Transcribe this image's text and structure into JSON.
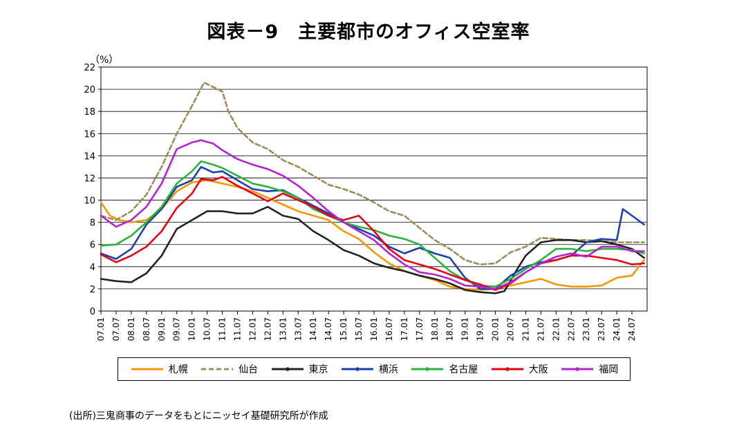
{
  "chart_data": {
    "type": "line",
    "title": "図表－9　主要都市のオフィス空室率",
    "ylabel": "（%）",
    "xlabel": "",
    "ylim": [
      0,
      22
    ],
    "yticks": [
      0,
      2,
      4,
      6,
      8,
      10,
      12,
      14,
      16,
      18,
      20,
      22
    ],
    "x_tick_labels": [
      "07.01",
      "07.07",
      "08.01",
      "08.07",
      "09.01",
      "09.07",
      "10.01",
      "10.07",
      "11.01",
      "11.07",
      "12.01",
      "12.07",
      "13.01",
      "13.07",
      "14.01",
      "14.07",
      "15.01",
      "15.07",
      "16.01",
      "16.07",
      "17.01",
      "17.07",
      "18.01",
      "18.07",
      "19.01",
      "19.07",
      "20.01",
      "20.07",
      "21.01",
      "21.07",
      "22.01",
      "22.07",
      "23.01",
      "23.07",
      "24.01",
      "24.07"
    ],
    "x_range": [
      "2007.01",
      "2024.12"
    ],
    "grid": "horizontal",
    "legend_placement": "bottom",
    "series": [
      {
        "name": "札幌",
        "color": "#F39800",
        "style": "solid",
        "points": [
          [
            2007.0,
            9.8
          ],
          [
            2007.3,
            8.6
          ],
          [
            2007.6,
            8.2
          ],
          [
            2008.0,
            8.0
          ],
          [
            2008.5,
            8.2
          ],
          [
            2009.0,
            9.2
          ],
          [
            2009.5,
            10.8
          ],
          [
            2010.0,
            11.6
          ],
          [
            2010.5,
            11.8
          ],
          [
            2011.0,
            11.5
          ],
          [
            2011.5,
            11.2
          ],
          [
            2012.0,
            10.8
          ],
          [
            2012.5,
            10.2
          ],
          [
            2013.0,
            9.6
          ],
          [
            2013.5,
            9.0
          ],
          [
            2014.0,
            8.6
          ],
          [
            2014.5,
            8.2
          ],
          [
            2015.0,
            7.2
          ],
          [
            2015.5,
            6.5
          ],
          [
            2016.0,
            5.3
          ],
          [
            2016.5,
            4.3
          ],
          [
            2017.0,
            3.6
          ],
          [
            2017.5,
            3.2
          ],
          [
            2018.0,
            2.8
          ],
          [
            2018.5,
            2.2
          ],
          [
            2019.0,
            2.0
          ],
          [
            2019.5,
            1.9
          ],
          [
            2020.0,
            2.0
          ],
          [
            2020.5,
            2.3
          ],
          [
            2021.0,
            2.6
          ],
          [
            2021.5,
            2.9
          ],
          [
            2022.0,
            2.4
          ],
          [
            2022.5,
            2.2
          ],
          [
            2023.0,
            2.2
          ],
          [
            2023.5,
            2.3
          ],
          [
            2024.0,
            3.0
          ],
          [
            2024.5,
            3.2
          ],
          [
            2024.9,
            4.6
          ]
        ]
      },
      {
        "name": "仙台",
        "color": "#9C8C5A",
        "style": "dashed",
        "points": [
          [
            2007.0,
            8.6
          ],
          [
            2007.5,
            8.2
          ],
          [
            2008.0,
            9.0
          ],
          [
            2008.5,
            10.5
          ],
          [
            2009.0,
            13.0
          ],
          [
            2009.5,
            16.0
          ],
          [
            2010.0,
            18.5
          ],
          [
            2010.4,
            20.6
          ],
          [
            2010.7,
            20.2
          ],
          [
            2011.0,
            19.8
          ],
          [
            2011.2,
            18.0
          ],
          [
            2011.5,
            16.5
          ],
          [
            2012.0,
            15.2
          ],
          [
            2012.5,
            14.6
          ],
          [
            2013.0,
            13.6
          ],
          [
            2013.5,
            13.0
          ],
          [
            2014.0,
            12.2
          ],
          [
            2014.5,
            11.4
          ],
          [
            2015.0,
            11.0
          ],
          [
            2015.5,
            10.5
          ],
          [
            2016.0,
            9.8
          ],
          [
            2016.5,
            9.0
          ],
          [
            2017.0,
            8.6
          ],
          [
            2017.5,
            7.5
          ],
          [
            2018.0,
            6.4
          ],
          [
            2018.5,
            5.6
          ],
          [
            2019.0,
            4.6
          ],
          [
            2019.5,
            4.2
          ],
          [
            2020.0,
            4.3
          ],
          [
            2020.5,
            5.3
          ],
          [
            2021.0,
            5.8
          ],
          [
            2021.5,
            6.6
          ],
          [
            2022.0,
            6.5
          ],
          [
            2022.5,
            6.4
          ],
          [
            2023.0,
            6.4
          ],
          [
            2023.5,
            6.3
          ],
          [
            2024.0,
            6.2
          ],
          [
            2024.5,
            6.2
          ],
          [
            2024.9,
            6.2
          ]
        ]
      },
      {
        "name": "東京",
        "color": "#222222",
        "style": "solid",
        "points": [
          [
            2007.0,
            2.9
          ],
          [
            2007.5,
            2.7
          ],
          [
            2008.0,
            2.6
          ],
          [
            2008.5,
            3.4
          ],
          [
            2009.0,
            5.0
          ],
          [
            2009.5,
            7.4
          ],
          [
            2010.0,
            8.2
          ],
          [
            2010.5,
            9.0
          ],
          [
            2011.0,
            9.0
          ],
          [
            2011.5,
            8.8
          ],
          [
            2012.0,
            8.8
          ],
          [
            2012.5,
            9.4
          ],
          [
            2013.0,
            8.6
          ],
          [
            2013.5,
            8.3
          ],
          [
            2014.0,
            7.2
          ],
          [
            2014.5,
            6.4
          ],
          [
            2015.0,
            5.5
          ],
          [
            2015.5,
            5.0
          ],
          [
            2016.0,
            4.3
          ],
          [
            2016.5,
            3.9
          ],
          [
            2017.0,
            3.6
          ],
          [
            2017.5,
            3.2
          ],
          [
            2018.0,
            2.9
          ],
          [
            2018.5,
            2.5
          ],
          [
            2019.0,
            1.9
          ],
          [
            2019.5,
            1.7
          ],
          [
            2020.0,
            1.6
          ],
          [
            2020.3,
            1.8
          ],
          [
            2020.7,
            3.7
          ],
          [
            2021.0,
            5.0
          ],
          [
            2021.5,
            6.2
          ],
          [
            2022.0,
            6.4
          ],
          [
            2022.5,
            6.4
          ],
          [
            2023.0,
            6.2
          ],
          [
            2023.5,
            6.3
          ],
          [
            2024.0,
            6.0
          ],
          [
            2024.5,
            5.6
          ],
          [
            2024.9,
            4.8
          ]
        ]
      },
      {
        "name": "横浜",
        "color": "#1C3FB0",
        "style": "solid",
        "points": [
          [
            2007.0,
            5.2
          ],
          [
            2007.5,
            4.7
          ],
          [
            2008.0,
            5.6
          ],
          [
            2008.5,
            7.8
          ],
          [
            2009.0,
            9.2
          ],
          [
            2009.5,
            11.2
          ],
          [
            2010.0,
            11.8
          ],
          [
            2010.3,
            13.0
          ],
          [
            2010.7,
            12.5
          ],
          [
            2011.0,
            12.6
          ],
          [
            2011.5,
            11.8
          ],
          [
            2012.0,
            11.0
          ],
          [
            2012.5,
            10.8
          ],
          [
            2013.0,
            10.9
          ],
          [
            2013.5,
            10.2
          ],
          [
            2014.0,
            9.5
          ],
          [
            2014.5,
            8.8
          ],
          [
            2015.0,
            8.0
          ],
          [
            2015.5,
            7.4
          ],
          [
            2016.0,
            6.8
          ],
          [
            2016.5,
            5.8
          ],
          [
            2017.0,
            5.2
          ],
          [
            2017.5,
            5.7
          ],
          [
            2018.0,
            5.2
          ],
          [
            2018.5,
            4.8
          ],
          [
            2019.0,
            3.0
          ],
          [
            2019.5,
            2.0
          ],
          [
            2020.0,
            2.0
          ],
          [
            2020.5,
            3.2
          ],
          [
            2021.0,
            4.0
          ],
          [
            2021.5,
            4.4
          ],
          [
            2022.0,
            4.6
          ],
          [
            2022.5,
            5.0
          ],
          [
            2023.0,
            6.2
          ],
          [
            2023.5,
            6.5
          ],
          [
            2024.0,
            6.4
          ],
          [
            2024.2,
            9.2
          ],
          [
            2024.5,
            8.6
          ],
          [
            2024.9,
            7.8
          ]
        ]
      },
      {
        "name": "名古屋",
        "color": "#2AB23A",
        "style": "solid",
        "points": [
          [
            2007.0,
            5.9
          ],
          [
            2007.5,
            6.0
          ],
          [
            2008.0,
            6.8
          ],
          [
            2008.5,
            8.0
          ],
          [
            2009.0,
            9.4
          ],
          [
            2009.5,
            11.5
          ],
          [
            2010.0,
            12.6
          ],
          [
            2010.3,
            13.5
          ],
          [
            2010.7,
            13.2
          ],
          [
            2011.0,
            12.9
          ],
          [
            2011.5,
            12.2
          ],
          [
            2012.0,
            11.5
          ],
          [
            2012.5,
            11.2
          ],
          [
            2013.0,
            10.8
          ],
          [
            2013.5,
            10.2
          ],
          [
            2014.0,
            9.2
          ],
          [
            2014.5,
            8.6
          ],
          [
            2015.0,
            8.0
          ],
          [
            2015.5,
            7.6
          ],
          [
            2016.0,
            7.3
          ],
          [
            2016.5,
            6.8
          ],
          [
            2017.0,
            6.5
          ],
          [
            2017.5,
            6.0
          ],
          [
            2018.0,
            4.8
          ],
          [
            2018.5,
            3.6
          ],
          [
            2019.0,
            2.8
          ],
          [
            2019.5,
            2.3
          ],
          [
            2020.0,
            2.2
          ],
          [
            2020.5,
            2.9
          ],
          [
            2021.0,
            3.8
          ],
          [
            2021.5,
            4.6
          ],
          [
            2022.0,
            5.6
          ],
          [
            2022.5,
            5.6
          ],
          [
            2023.0,
            5.4
          ],
          [
            2023.5,
            5.6
          ],
          [
            2024.0,
            5.6
          ],
          [
            2024.5,
            5.5
          ],
          [
            2024.9,
            5.2
          ]
        ]
      },
      {
        "name": "大阪",
        "color": "#E60012",
        "style": "solid",
        "points": [
          [
            2007.0,
            5.1
          ],
          [
            2007.5,
            4.4
          ],
          [
            2008.0,
            5.0
          ],
          [
            2008.5,
            5.8
          ],
          [
            2009.0,
            7.2
          ],
          [
            2009.5,
            9.3
          ],
          [
            2010.0,
            10.6
          ],
          [
            2010.3,
            11.9
          ],
          [
            2010.7,
            11.8
          ],
          [
            2011.0,
            12.1
          ],
          [
            2011.5,
            11.3
          ],
          [
            2012.0,
            10.6
          ],
          [
            2012.5,
            9.9
          ],
          [
            2013.0,
            10.6
          ],
          [
            2013.5,
            10.0
          ],
          [
            2014.0,
            9.4
          ],
          [
            2014.5,
            8.6
          ],
          [
            2015.0,
            8.2
          ],
          [
            2015.5,
            8.6
          ],
          [
            2016.0,
            7.2
          ],
          [
            2016.5,
            5.6
          ],
          [
            2017.0,
            4.6
          ],
          [
            2017.5,
            4.2
          ],
          [
            2018.0,
            3.8
          ],
          [
            2018.5,
            3.3
          ],
          [
            2019.0,
            2.8
          ],
          [
            2019.5,
            2.4
          ],
          [
            2020.0,
            1.9
          ],
          [
            2020.5,
            2.5
          ],
          [
            2021.0,
            3.5
          ],
          [
            2021.5,
            4.3
          ],
          [
            2022.0,
            4.6
          ],
          [
            2022.5,
            5.0
          ],
          [
            2023.0,
            5.0
          ],
          [
            2023.5,
            4.8
          ],
          [
            2024.0,
            4.6
          ],
          [
            2024.5,
            4.2
          ],
          [
            2024.9,
            4.3
          ]
        ]
      },
      {
        "name": "福岡",
        "color": "#B521D4",
        "style": "solid",
        "points": [
          [
            2007.0,
            8.6
          ],
          [
            2007.5,
            7.6
          ],
          [
            2008.0,
            8.2
          ],
          [
            2008.5,
            9.4
          ],
          [
            2009.0,
            11.5
          ],
          [
            2009.5,
            14.6
          ],
          [
            2010.0,
            15.2
          ],
          [
            2010.3,
            15.4
          ],
          [
            2010.7,
            15.1
          ],
          [
            2011.0,
            14.5
          ],
          [
            2011.5,
            13.7
          ],
          [
            2012.0,
            13.2
          ],
          [
            2012.5,
            12.8
          ],
          [
            2013.0,
            12.2
          ],
          [
            2013.5,
            11.3
          ],
          [
            2014.0,
            10.2
          ],
          [
            2014.5,
            9.0
          ],
          [
            2015.0,
            8.0
          ],
          [
            2015.5,
            7.2
          ],
          [
            2016.0,
            6.4
          ],
          [
            2016.5,
            5.2
          ],
          [
            2017.0,
            4.2
          ],
          [
            2017.5,
            3.5
          ],
          [
            2018.0,
            3.3
          ],
          [
            2018.5,
            2.9
          ],
          [
            2019.0,
            2.3
          ],
          [
            2019.5,
            2.2
          ],
          [
            2020.0,
            2.0
          ],
          [
            2020.5,
            2.6
          ],
          [
            2021.0,
            3.5
          ],
          [
            2021.5,
            4.3
          ],
          [
            2022.0,
            4.9
          ],
          [
            2022.5,
            5.2
          ],
          [
            2023.0,
            4.9
          ],
          [
            2023.5,
            5.8
          ],
          [
            2024.0,
            5.8
          ],
          [
            2024.5,
            5.4
          ],
          [
            2024.9,
            5.4
          ]
        ]
      }
    ]
  },
  "source_note": "(出所)三鬼商事のデータをもとにニッセイ基礎研究所が作成"
}
